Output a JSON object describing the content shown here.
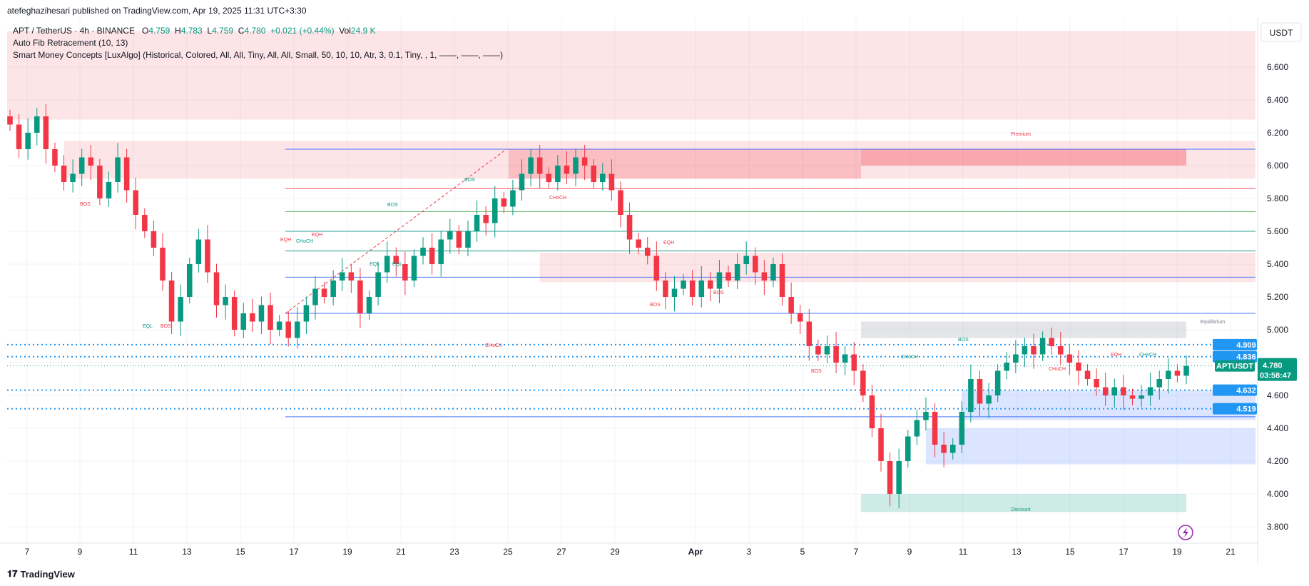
{
  "header": {
    "published_by": "atefeghazihesari published on TradingView.com, Apr 19, 2025 11:31 UTC+3:30"
  },
  "legend": {
    "symbol": "APT / TetherUS · 4h · BINANCE",
    "o_label": "O",
    "o_value": "4.759",
    "h_label": "H",
    "h_value": "4.783",
    "l_label": "L",
    "l_value": "4.759",
    "c_label": "C",
    "c_value": "4.780",
    "change": "+0.021 (+0.44%)",
    "vol_label": "Vol",
    "vol_value": "24.9 K",
    "indicator1": "Auto Fib Retracement (10, 13)",
    "indicator2": "Smart Money Concepts [LuxAlgo] (Historical, Colored, All, All, Tiny, All, All, Small, 50, 10, 10, Atr, 3, 0.1, Tiny, , 1, ——, ——, ——)"
  },
  "currency": "USDT",
  "price_tag": {
    "symbol": "APTUSDT",
    "price": "4.780",
    "countdown": "03:58:47"
  },
  "level_tags": [
    "4.909",
    "4.836",
    "4.632",
    "4.519"
  ],
  "zone_labels": {
    "premium": "Premium",
    "equilibrium": "Equilibrium",
    "discount": "Discount"
  },
  "footer": {
    "brand": "TradingView"
  },
  "colors": {
    "bull": "#089981",
    "bear": "#f23645",
    "blue": "#2962ff",
    "tag_blue": "#2196f3"
  },
  "chart_data": {
    "type": "candlestick",
    "title": "APT / TetherUS · 4h · BINANCE",
    "ylim": [
      3.7,
      6.9
    ],
    "y_ticks": [
      "3.800",
      "4.000",
      "4.200",
      "4.400",
      "4.600",
      "4.800",
      "5.000",
      "5.200",
      "5.400",
      "5.600",
      "5.800",
      "6.000",
      "6.200",
      "6.400",
      "6.600"
    ],
    "x_ticks": [
      "7",
      "9",
      "11",
      "13",
      "15",
      "17",
      "19",
      "21",
      "23",
      "25",
      "27",
      "29",
      "Apr",
      "3",
      "5",
      "7",
      "9",
      "11",
      "13",
      "15",
      "17",
      "19",
      "21"
    ],
    "x_tick_index": [
      0,
      2,
      4,
      6,
      8,
      10,
      12,
      14,
      16,
      18,
      20,
      22,
      24,
      26,
      28,
      30,
      32,
      34,
      36,
      38,
      40,
      42,
      44
    ],
    "close_series": [
      6.25,
      6.1,
      6.2,
      6.3,
      6.1,
      6.0,
      5.9,
      5.95,
      6.05,
      6.0,
      5.8,
      5.9,
      6.05,
      5.85,
      5.7,
      5.6,
      5.5,
      5.3,
      5.05,
      5.2,
      5.4,
      5.55,
      5.35,
      5.15,
      5.2,
      5.0,
      5.1,
      5.05,
      5.15,
      5.0,
      5.05,
      4.95,
      5.05,
      5.15,
      5.25,
      5.2,
      5.3,
      5.35,
      5.3,
      5.1,
      5.2,
      5.35,
      5.45,
      5.4,
      5.3,
      5.45,
      5.5,
      5.4,
      5.55,
      5.6,
      5.5,
      5.6,
      5.7,
      5.65,
      5.8,
      5.75,
      5.85,
      5.95,
      6.05,
      5.95,
      5.9,
      6.0,
      5.95,
      6.05,
      6.0,
      5.9,
      5.95,
      5.85,
      5.7,
      5.55,
      5.5,
      5.45,
      5.3,
      5.2,
      5.25,
      5.3,
      5.2,
      5.3,
      5.25,
      5.35,
      5.3,
      5.4,
      5.45,
      5.35,
      5.3,
      5.4,
      5.2,
      5.1,
      5.05,
      4.9,
      4.85,
      4.9,
      4.8,
      4.85,
      4.75,
      4.6,
      4.4,
      4.2,
      4.0,
      4.2,
      4.35,
      4.45,
      4.5,
      4.3,
      4.25,
      4.3,
      4.5,
      4.7,
      4.55,
      4.6,
      4.75,
      4.8,
      4.85,
      4.9,
      4.85,
      4.95,
      4.9,
      4.85,
      4.8,
      4.75,
      4.7,
      4.65,
      4.6,
      4.65,
      4.6,
      4.58,
      4.6,
      4.65,
      4.7,
      4.75,
      4.72,
      4.78
    ],
    "zones": [
      {
        "type": "supply",
        "from_index": 0,
        "to_index": 128,
        "low": 6.28,
        "high": 6.82
      },
      {
        "type": "supply",
        "from_index": 6,
        "to_index": 128,
        "low": 5.92,
        "high": 6.15
      },
      {
        "type": "supply",
        "from_index": 59,
        "to_index": 128,
        "low": 5.29,
        "high": 5.47
      },
      {
        "type": "demand",
        "from_index": 106,
        "to_index": 128,
        "low": 4.45,
        "high": 4.63
      },
      {
        "type": "demand",
        "from_index": 102,
        "to_index": 128,
        "low": 4.18,
        "high": 4.4
      }
    ],
    "fib_levels": [
      6.1,
      5.86,
      5.72,
      5.6,
      5.48,
      5.32,
      5.1,
      4.47
    ],
    "dotted_levels": [
      4.909,
      4.836,
      4.632,
      4.519
    ],
    "last_price": 4.78
  }
}
